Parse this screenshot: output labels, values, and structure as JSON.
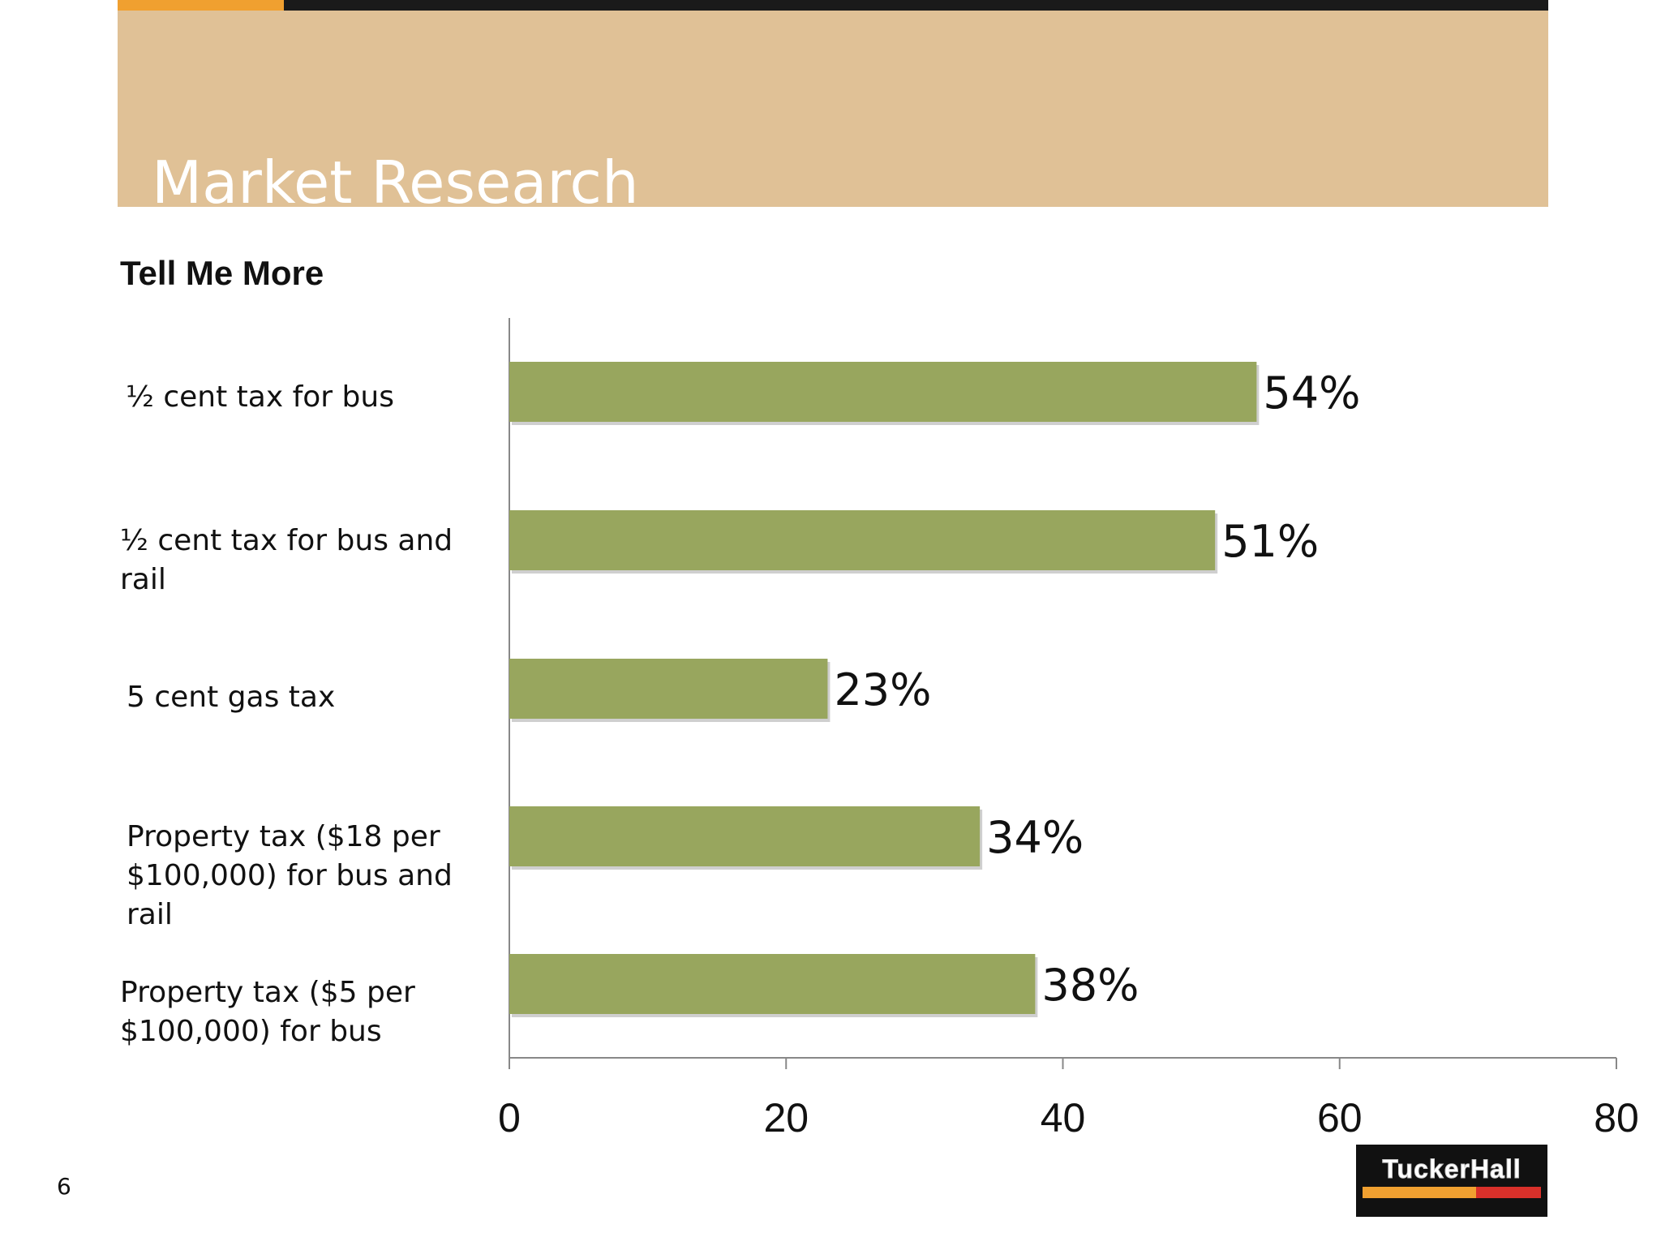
{
  "header": {
    "title": "Market Research",
    "subtitle": "Tell Me More"
  },
  "page_number": "6",
  "logo": {
    "text": "TuckerHall"
  },
  "colors": {
    "header_band": "#e0c196",
    "header_topbar": "#1a1a1a",
    "header_accent": "#f0a030",
    "bar": "#98a65e",
    "axis": "#888888"
  },
  "chart_data": {
    "type": "bar",
    "orientation": "horizontal",
    "title": "",
    "xlabel": "",
    "ylabel": "",
    "categories": [
      "½ cent tax for bus",
      "½ cent tax for bus and rail",
      "5 cent gas tax",
      "Property tax ($18 per $100,000) for bus and rail",
      "Property tax ($5 per $100,000) for bus"
    ],
    "values": [
      54,
      51,
      23,
      34,
      38
    ],
    "data_labels": [
      "54%",
      "51%",
      "23%",
      "34%",
      "38%"
    ],
    "xlim": [
      0,
      80
    ],
    "x_ticks": [
      "0",
      "20",
      "40",
      "60",
      "80"
    ],
    "grid": false,
    "legend": "none"
  }
}
